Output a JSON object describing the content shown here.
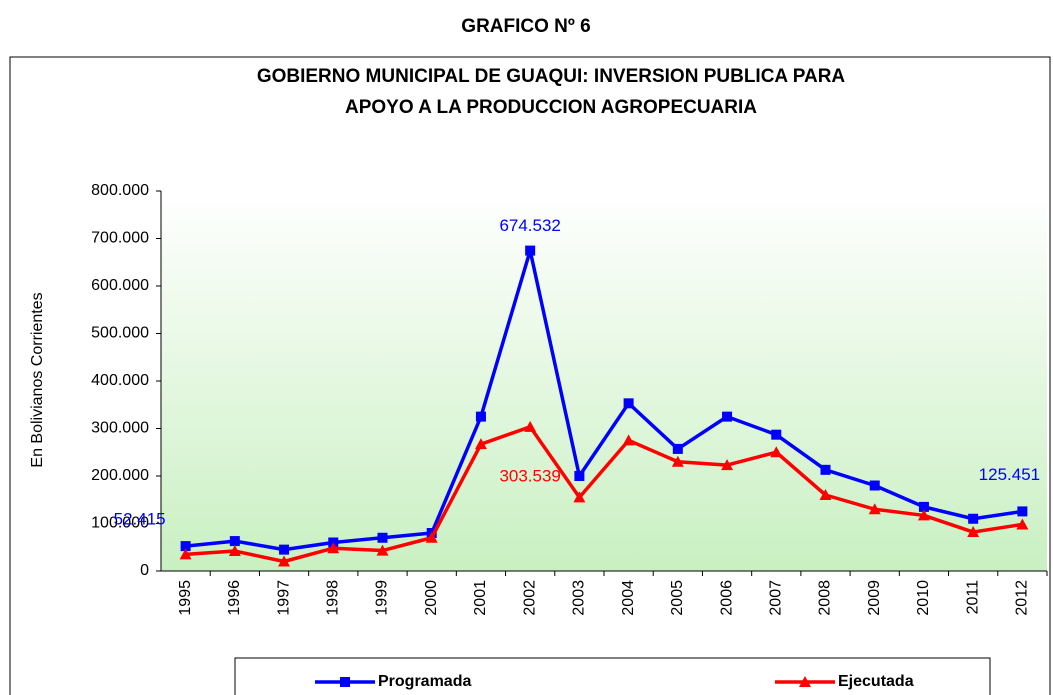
{
  "chart_data": {
    "type": "line",
    "heading": "GRAFICO Nº 6",
    "title": "GOBIERNO MUNICIPAL DE GUAQUI: INVERSION PUBLICA PARA",
    "subtitle": "APOYO A LA PRODUCCION AGROPECUARIA",
    "y_label": "En Bolivianos Corrientes",
    "categories": [
      "1995",
      "1996",
      "1997",
      "1998",
      "1999",
      "2000",
      "2001",
      "2002",
      "2003",
      "2004",
      "2005",
      "2006",
      "2007",
      "2008",
      "2009",
      "2010",
      "2011",
      "2012"
    ],
    "series": [
      {
        "name": "Programada",
        "color": "#0000ff",
        "marker": "square",
        "values": [
          52415,
          63000,
          45000,
          60000,
          70000,
          80000,
          325000,
          674532,
          200000,
          353000,
          257000,
          325000,
          287000,
          213000,
          180000,
          135000,
          110000,
          125451
        ],
        "value_labels": [
          "52.415",
          null,
          null,
          null,
          null,
          null,
          null,
          "674.532",
          null,
          null,
          null,
          null,
          null,
          null,
          null,
          null,
          null,
          "125.451"
        ]
      },
      {
        "name": "Ejecutada",
        "color": "#ff0000",
        "marker": "triangle",
        "values": [
          35000,
          42000,
          20000,
          48000,
          43000,
          70000,
          267000,
          303539,
          155000,
          275000,
          230000,
          223000,
          250000,
          160000,
          130000,
          117000,
          82000,
          98000
        ],
        "value_labels": [
          null,
          null,
          null,
          null,
          null,
          null,
          null,
          "303.539",
          null,
          null,
          null,
          null,
          null,
          null,
          null,
          null,
          null,
          null
        ]
      }
    ],
    "ylim": [
      0,
      800000
    ],
    "yticks": [
      0,
      {
        "value": 100000,
        "label": "100.000"
      },
      {
        "value": 200000,
        "label": "200.000"
      },
      {
        "value": 300000,
        "label": "300.000"
      },
      {
        "value": 400000,
        "label": "400.000"
      },
      {
        "value": 500000,
        "label": "500.000"
      },
      {
        "value": 600000,
        "label": "600.000"
      },
      {
        "value": 700000,
        "label": "700.000"
      },
      {
        "value": 800000,
        "label": "800.000"
      }
    ],
    "grid": false
  }
}
